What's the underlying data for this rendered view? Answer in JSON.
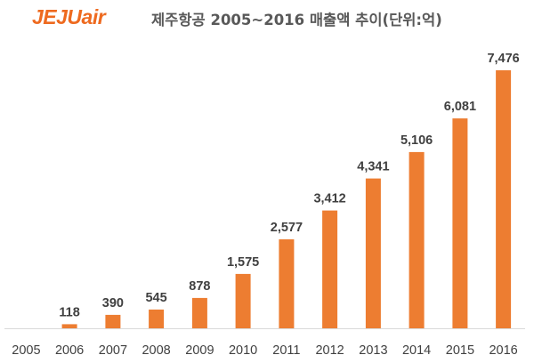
{
  "header": {
    "logo_text": "JEJUair",
    "title": "제주항공 2005~2016 매출액 추이(단위:억)"
  },
  "colors": {
    "bar": "#ed7d31",
    "logo": "#ee6a1f",
    "axis": "#d9d9d9"
  },
  "chart_data": {
    "type": "bar",
    "title": "제주항공 2005~2016 매출액 추이(단위:억)",
    "xlabel": "",
    "ylabel": "",
    "categories": [
      "2005",
      "2006",
      "2007",
      "2008",
      "2009",
      "2010",
      "2011",
      "2012",
      "2013",
      "2014",
      "2015",
      "2016"
    ],
    "values": [
      0,
      118,
      390,
      545,
      878,
      1575,
      2577,
      3412,
      4341,
      5106,
      6081,
      7476
    ],
    "value_labels": [
      "",
      "118",
      "390",
      "545",
      "878",
      "1,575",
      "2,577",
      "3,412",
      "4,341",
      "5,106",
      "6,081",
      "7,476"
    ],
    "ylim": [
      0,
      7476
    ],
    "grid": false,
    "legend": "none"
  }
}
